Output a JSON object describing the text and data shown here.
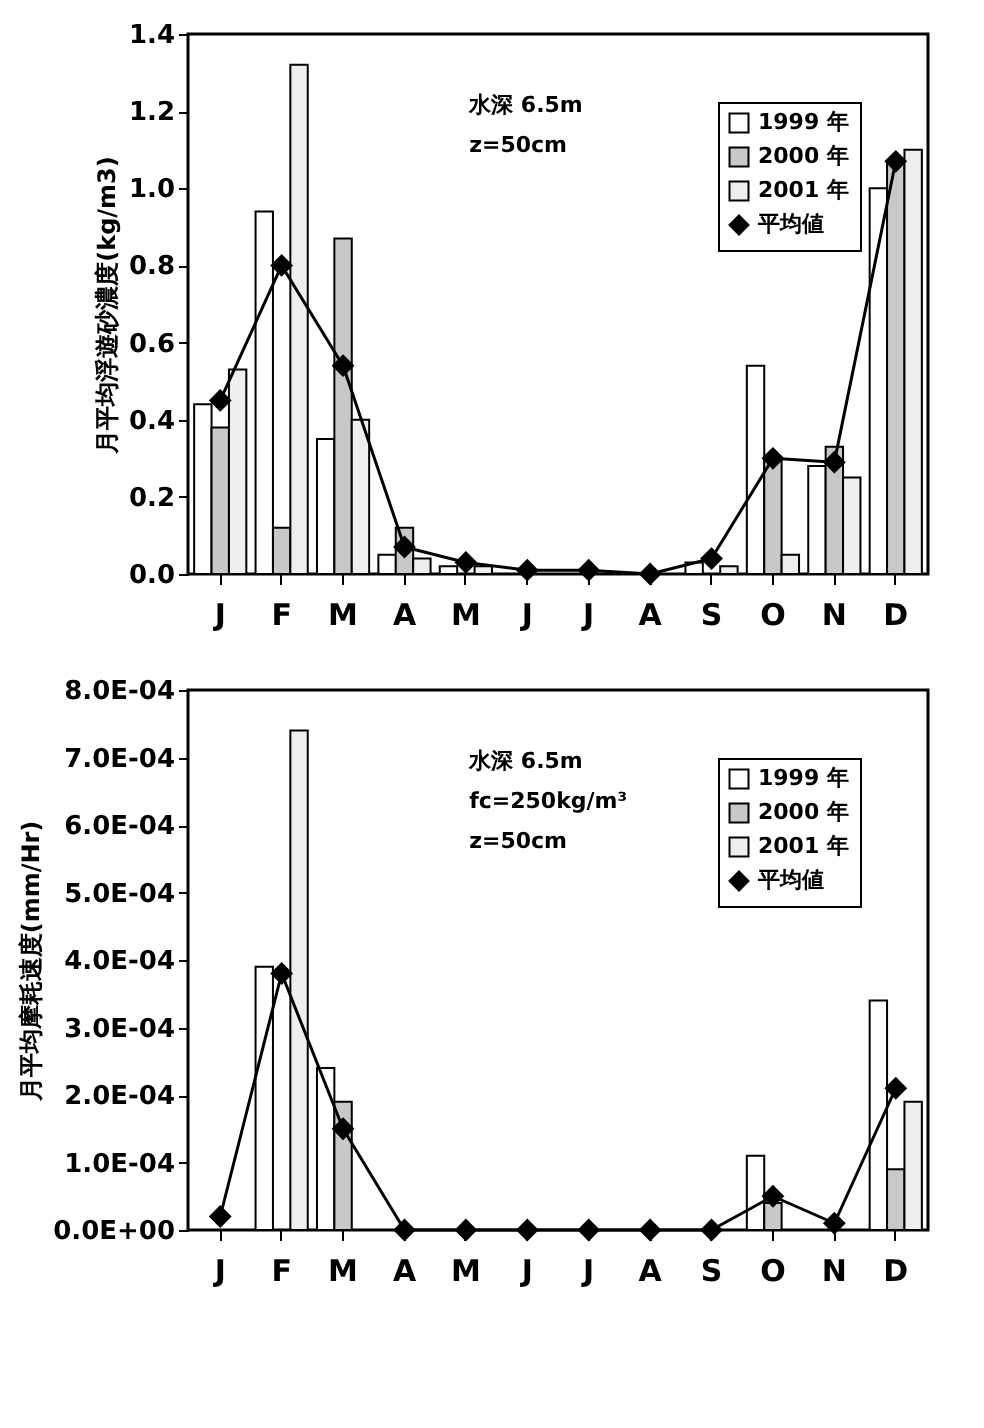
{
  "chart_data": [
    {
      "type": "bar",
      "ylabel": "月平均浮遊砂濃度(kg/m3)",
      "categories": [
        "J",
        "F",
        "M",
        "A",
        "M",
        "J",
        "J",
        "A",
        "S",
        "O",
        "N",
        "D"
      ],
      "ylim": [
        0,
        1.4
      ],
      "yticks": [
        {
          "value": 0,
          "label": "0.0"
        },
        0.2,
        0.4,
        0.6,
        0.8,
        {
          "value": 1,
          "label": "1.0"
        },
        1.2,
        1.4
      ],
      "grid": false,
      "legend": "top right",
      "marker": "diamond",
      "annotations": [
        "水深 6.5m",
        "z=50cm"
      ],
      "series": [
        {
          "name": "1999 年",
          "color": "#ffffff",
          "values": [
            0.44,
            0.94,
            0.35,
            0.05,
            0.02,
            null,
            null,
            null,
            0.03,
            0.54,
            0.28,
            1.0
          ]
        },
        {
          "name": "2000 年",
          "color": "#c8c8c8",
          "values": [
            0.38,
            0.12,
            0.87,
            0.12,
            null,
            null,
            null,
            null,
            null,
            0.3,
            0.33,
            1.07
          ]
        },
        {
          "name": "2001 年",
          "color": "#eeeeee",
          "values": [
            0.53,
            1.32,
            0.4,
            0.04,
            0.02,
            null,
            null,
            null,
            0.02,
            0.05,
            0.25,
            1.1
          ]
        },
        {
          "name": "平均値",
          "type": "line",
          "color": "#000000",
          "values": [
            0.45,
            0.8,
            0.54,
            0.07,
            0.03,
            0.01,
            0.01,
            0.0,
            0.04,
            0.3,
            0.29,
            1.07
          ]
        }
      ]
    },
    {
      "type": "bar",
      "ylabel": "月平均摩耗速度(mm/Hr)",
      "categories": [
        "J",
        "F",
        "M",
        "A",
        "M",
        "J",
        "J",
        "A",
        "S",
        "O",
        "N",
        "D"
      ],
      "ylim": [
        0,
        0.0008
      ],
      "yticks": [
        {
          "value": 0,
          "label": "0.0E+00"
        },
        {
          "value": 0.0001,
          "label": "1.0E-04"
        },
        {
          "value": 0.0002,
          "label": "2.0E-04"
        },
        {
          "value": 0.0003,
          "label": "3.0E-04"
        },
        {
          "value": 0.0004,
          "label": "4.0E-04"
        },
        {
          "value": 0.0005,
          "label": "5.0E-04"
        },
        {
          "value": 0.0006,
          "label": "6.0E-04"
        },
        {
          "value": 0.0007,
          "label": "7.0E-04"
        },
        {
          "value": 0.0008,
          "label": "8.0E-04"
        }
      ],
      "grid": false,
      "legend": "top right",
      "marker": "diamond",
      "annotations": [
        "水深 6.5m",
        "fc=250kg/m³",
        "z=50cm"
      ],
      "series": [
        {
          "name": "1999 年",
          "color": "#ffffff",
          "values": [
            null,
            0.00039,
            0.00024,
            null,
            null,
            null,
            null,
            null,
            null,
            0.00011,
            null,
            0.00034
          ]
        },
        {
          "name": "2000 年",
          "color": "#c8c8c8",
          "values": [
            null,
            null,
            0.00019,
            null,
            null,
            null,
            null,
            null,
            null,
            4e-05,
            null,
            9e-05
          ]
        },
        {
          "name": "2001 年",
          "color": "#eeeeee",
          "values": [
            null,
            0.00074,
            null,
            null,
            null,
            null,
            null,
            null,
            null,
            null,
            null,
            0.00019
          ]
        },
        {
          "name": "平均値",
          "type": "line",
          "color": "#000000",
          "values": [
            2e-05,
            0.00038,
            0.00015,
            0,
            0,
            0,
            0,
            0,
            0,
            5e-05,
            1e-05,
            0.00021
          ]
        }
      ]
    }
  ]
}
